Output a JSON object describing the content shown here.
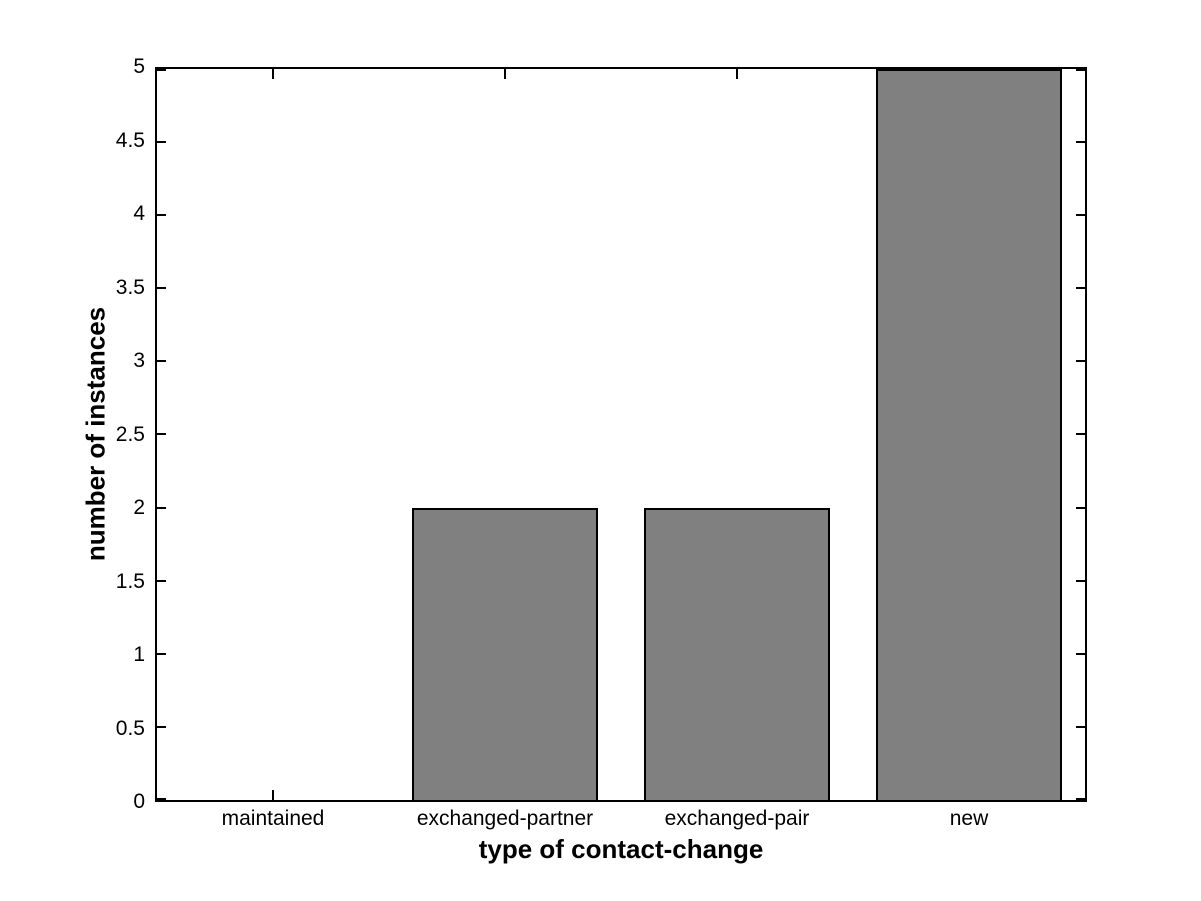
{
  "chart_data": {
    "type": "bar",
    "title": "",
    "categories": [
      "maintained",
      "exchanged-partner",
      "exchanged-pair",
      "new"
    ],
    "values": [
      0,
      2,
      2,
      5
    ],
    "xlabel": "type of contact-change",
    "ylabel": "number of instances",
    "ylim": [
      0,
      5
    ],
    "ytick_labels": [
      "0",
      "0.5",
      "1",
      "1.5",
      "2",
      "2.5",
      "3",
      "3.5",
      "4",
      "4.5",
      "5"
    ],
    "bar_width_fraction": 0.8,
    "bar_fill_color": "#808080",
    "bar_edge_color": "#000000",
    "axis_color": "#000000",
    "background_color": "#ffffff",
    "grid": false,
    "legend_position": "none",
    "tick_direction": "in",
    "box": true
  }
}
